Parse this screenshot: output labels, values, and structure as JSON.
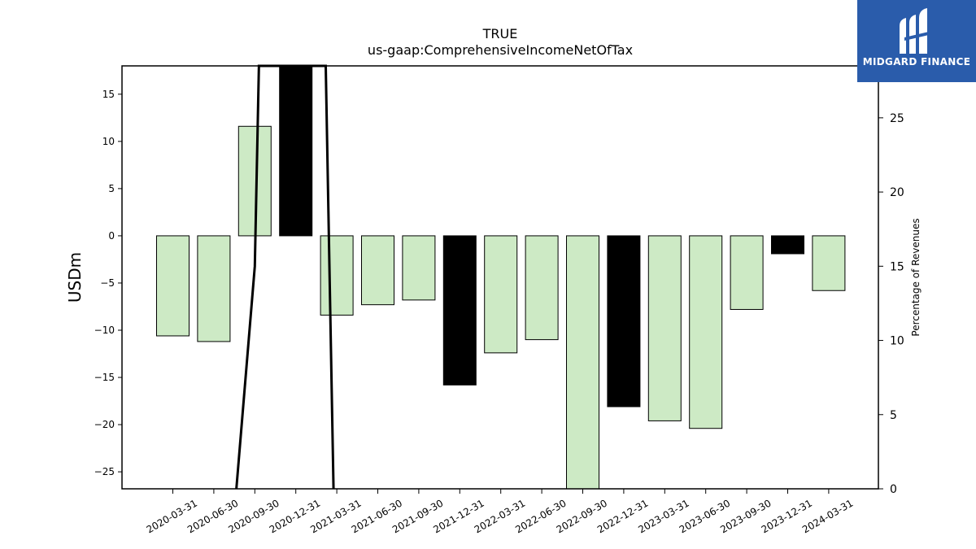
{
  "title": "TRUE",
  "subtitle": "us-gaap:ComprehensiveIncomeNetOfTax",
  "logo": {
    "text": "MIDGARD FINANCE",
    "bg_color": "#2a5cab"
  },
  "chart_data": {
    "type": "bar",
    "xlabel": "",
    "ylabel": "USDm",
    "y2label": "Percentage of Revenues",
    "ylim": [
      -26.8,
      18
    ],
    "y2lim": [
      0,
      28.5
    ],
    "yticks": [
      -25,
      -20,
      -15,
      -10,
      -5,
      0,
      5,
      10,
      15
    ],
    "y2ticks": [
      0,
      5,
      10,
      15,
      20,
      25
    ],
    "categories": [
      "2020-03-31",
      "2020-06-30",
      "2020-09-30",
      "2020-12-31",
      "2021-03-31",
      "2021-06-30",
      "2021-09-30",
      "2021-12-31",
      "2022-03-31",
      "2022-06-30",
      "2022-09-30",
      "2022-12-31",
      "2023-03-31",
      "2023-06-30",
      "2023-09-30",
      "2023-12-31",
      "2024-03-31"
    ],
    "values": [
      -10.6,
      -11.2,
      11.6,
      18.0,
      -8.4,
      -7.3,
      -6.8,
      -15.8,
      -12.4,
      -11.0,
      -26.8,
      -18.1,
      -19.6,
      -20.4,
      -7.8,
      -1.9,
      -5.8
    ],
    "bar_colors": [
      "#cdeac5",
      "#cdeac5",
      "#cdeac5",
      "#000000",
      "#cdeac5",
      "#cdeac5",
      "#cdeac5",
      "#000000",
      "#cdeac5",
      "#cdeac5",
      "#cdeac5",
      "#000000",
      "#cdeac5",
      "#cdeac5",
      "#cdeac5",
      "#000000",
      "#cdeac5"
    ],
    "line_series": {
      "name": "Percentage of Revenues",
      "axis": "right",
      "x_positions": [
        1.55,
        2,
        2.1,
        3.73,
        3.92
      ],
      "values": [
        0,
        15,
        28.5,
        28.5,
        0
      ]
    },
    "grid": false
  }
}
